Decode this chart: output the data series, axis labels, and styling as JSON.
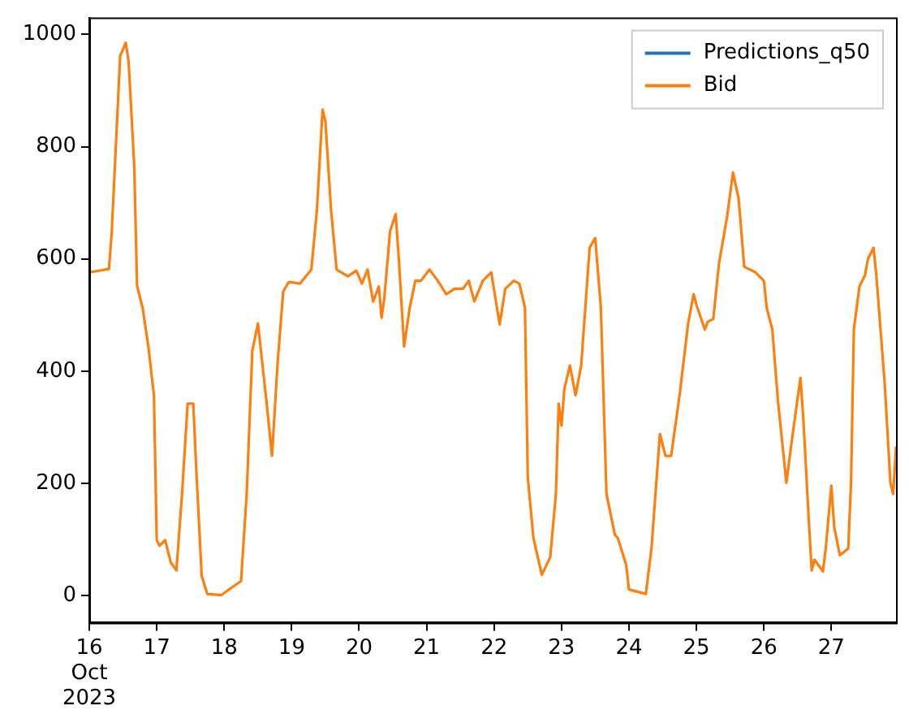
{
  "chart_data": {
    "type": "line",
    "legend": "top right",
    "marker": "none",
    "line_style": "solid",
    "xlim": [
      "2023-10-16T00:00",
      "2023-10-27T23:00"
    ],
    "xticks": [
      {
        "value": "2023-10-16",
        "label": "16\nOct\n2023"
      },
      {
        "value": "2023-10-17",
        "label": "17"
      },
      {
        "value": "2023-10-18",
        "label": "18"
      },
      {
        "value": "2023-10-19",
        "label": "19"
      },
      {
        "value": "2023-10-20",
        "label": "20"
      },
      {
        "value": "2023-10-21",
        "label": "21"
      },
      {
        "value": "2023-10-22",
        "label": "22"
      },
      {
        "value": "2023-10-23",
        "label": "23"
      },
      {
        "value": "2023-10-24",
        "label": "24"
      },
      {
        "value": "2023-10-25",
        "label": "25"
      },
      {
        "value": "2023-10-26",
        "label": "26"
      },
      {
        "value": "2023-10-27",
        "label": "27"
      }
    ],
    "ylim": [
      -48,
      1030
    ],
    "yticks": [
      0,
      200,
      400,
      600,
      800,
      1000
    ],
    "x": [
      "2023-10-16T00:00",
      "2023-10-16T07:00",
      "2023-10-16T08:00",
      "2023-10-16T11:00",
      "2023-10-16T13:00",
      "2023-10-16T14:00",
      "2023-10-16T16:00",
      "2023-10-16T17:00",
      "2023-10-16T19:00",
      "2023-10-16T21:00",
      "2023-10-16T23:00",
      "2023-10-17T00:00",
      "2023-10-17T01:00",
      "2023-10-17T03:00",
      "2023-10-17T05:00",
      "2023-10-17T07:00",
      "2023-10-17T09:00",
      "2023-10-17T11:00",
      "2023-10-17T13:00",
      "2023-10-17T14:00",
      "2023-10-17T16:00",
      "2023-10-17T18:00",
      "2023-10-17T23:00",
      "2023-10-18T02:00",
      "2023-10-18T06:00",
      "2023-10-18T08:00",
      "2023-10-18T10:00",
      "2023-10-18T12:00",
      "2023-10-18T15:00",
      "2023-10-18T17:00",
      "2023-10-18T19:00",
      "2023-10-18T21:00",
      "2023-10-18T23:00",
      "2023-10-19T03:00",
      "2023-10-19T07:00",
      "2023-10-19T09:00",
      "2023-10-19T11:00",
      "2023-10-19T12:00",
      "2023-10-19T14:00",
      "2023-10-19T16:00",
      "2023-10-19T20:00",
      "2023-10-19T23:00",
      "2023-10-20T01:00",
      "2023-10-20T03:00",
      "2023-10-20T05:00",
      "2023-10-20T07:00",
      "2023-10-20T08:00",
      "2023-10-20T09:00",
      "2023-10-20T11:00",
      "2023-10-20T13:00",
      "2023-10-20T14:00",
      "2023-10-20T16:00",
      "2023-10-20T18:00",
      "2023-10-20T20:00",
      "2023-10-20T22:00",
      "2023-10-21T01:00",
      "2023-10-21T04:00",
      "2023-10-21T07:00",
      "2023-10-21T10:00",
      "2023-10-21T13:00",
      "2023-10-21T15:00",
      "2023-10-21T17:00",
      "2023-10-21T20:00",
      "2023-10-21T23:00",
      "2023-10-22T02:00",
      "2023-10-22T04:00",
      "2023-10-22T07:00",
      "2023-10-22T09:00",
      "2023-10-22T11:00",
      "2023-10-22T12:00",
      "2023-10-22T14:00",
      "2023-10-22T17:00",
      "2023-10-22T20:00",
      "2023-10-22T22:00",
      "2023-10-22T23:00",
      "2023-10-23T00:00",
      "2023-10-23T01:00",
      "2023-10-23T03:00",
      "2023-10-23T05:00",
      "2023-10-23T07:00",
      "2023-10-23T10:00",
      "2023-10-23T12:00",
      "2023-10-23T14:00",
      "2023-10-23T16:00",
      "2023-10-23T19:00",
      "2023-10-23T20:00",
      "2023-10-23T23:00",
      "2023-10-24T00:00",
      "2023-10-24T06:00",
      "2023-10-24T08:00",
      "2023-10-24T11:00",
      "2023-10-24T13:00",
      "2023-10-24T15:00",
      "2023-10-24T18:00",
      "2023-10-24T21:00",
      "2023-10-24T23:00",
      "2023-10-25T00:00",
      "2023-10-25T03:00",
      "2023-10-25T04:00",
      "2023-10-25T06:00",
      "2023-10-25T08:00",
      "2023-10-25T11:00",
      "2023-10-25T13:00",
      "2023-10-25T15:00",
      "2023-10-25T17:00",
      "2023-10-25T21:00",
      "2023-10-26T00:00",
      "2023-10-26T01:00",
      "2023-10-26T03:00",
      "2023-10-26T05:00",
      "2023-10-26T08:00",
      "2023-10-26T10:00",
      "2023-10-26T13:00",
      "2023-10-26T14:00",
      "2023-10-26T16:00",
      "2023-10-26T17:00",
      "2023-10-26T18:00",
      "2023-10-26T21:00",
      "2023-10-26T22:00",
      "2023-10-27T00:00",
      "2023-10-27T01:00",
      "2023-10-27T03:00",
      "2023-10-27T06:00",
      "2023-10-27T07:00",
      "2023-10-27T08:00",
      "2023-10-27T10:00",
      "2023-10-27T12:00",
      "2023-10-27T13:00",
      "2023-10-27T15:00",
      "2023-10-27T16:00",
      "2023-10-27T19:00",
      "2023-10-27T21:00",
      "2023-10-27T22:00",
      "2023-10-27T23:00"
    ],
    "series": [
      {
        "name": "Predictions_q50",
        "color": "#1f77b4",
        "values": [
          null,
          null,
          null,
          null,
          null,
          null,
          null,
          null,
          null,
          null,
          null,
          null,
          null,
          null,
          null,
          null,
          null,
          null,
          null,
          null,
          null,
          null,
          null,
          null,
          null,
          null,
          null,
          null,
          null,
          null,
          null,
          null,
          null,
          null,
          null,
          null,
          null,
          null,
          null,
          null,
          null,
          null,
          null,
          null,
          null,
          null,
          null,
          null,
          null,
          null,
          null,
          null,
          null,
          null,
          null,
          null,
          null,
          null,
          null,
          null,
          null,
          null,
          null,
          null,
          null,
          null,
          null,
          null,
          null,
          null,
          null,
          null,
          null,
          null,
          null,
          null,
          null,
          null,
          null,
          null,
          null,
          null,
          null,
          null,
          null,
          null,
          null,
          null,
          null,
          null,
          null,
          null,
          null,
          null,
          null,
          null,
          null,
          null,
          null,
          null,
          null,
          null,
          null,
          null,
          null,
          null,
          null,
          null,
          null,
          null,
          null,
          null,
          null,
          null,
          null,
          null,
          null,
          null,
          null,
          null,
          null,
          null,
          null,
          null,
          null,
          null,
          null,
          null,
          null,
          null,
          null,
          null,
          null,
          null
        ]
      },
      {
        "name": "Bid",
        "color": "#ff7f0e",
        "values": [
          576,
          582,
          649,
          962,
          985,
          951,
          766,
          552,
          512,
          445,
          357,
          99,
          89,
          99,
          59,
          45,
          181,
          342,
          342,
          231,
          35,
          3,
          1,
          12,
          26,
          181,
          436,
          485,
          348,
          249,
          415,
          542,
          559,
          556,
          581,
          688,
          866,
          845,
          688,
          581,
          569,
          579,
          556,
          581,
          524,
          551,
          495,
          532,
          649,
          680,
          610,
          444,
          513,
          561,
          561,
          581,
          561,
          537,
          547,
          547,
          561,
          524,
          561,
          576,
          483,
          547,
          561,
          556,
          513,
          211,
          103,
          37,
          69,
          181,
          342,
          303,
          368,
          410,
          357,
          410,
          620,
          637,
          513,
          181,
          108,
          103,
          55,
          11,
          3,
          84,
          288,
          249,
          249,
          357,
          483,
          537,
          518,
          474,
          488,
          493,
          591,
          678,
          754,
          708,
          586,
          576,
          561,
          513,
          474,
          347,
          201,
          279,
          388,
          318,
          132,
          45,
          64,
          43,
          84,
          196,
          123,
          72,
          84,
          201,
          474,
          551,
          571,
          600,
          620,
          571,
          376,
          201,
          181,
          264
        ]
      }
    ]
  }
}
